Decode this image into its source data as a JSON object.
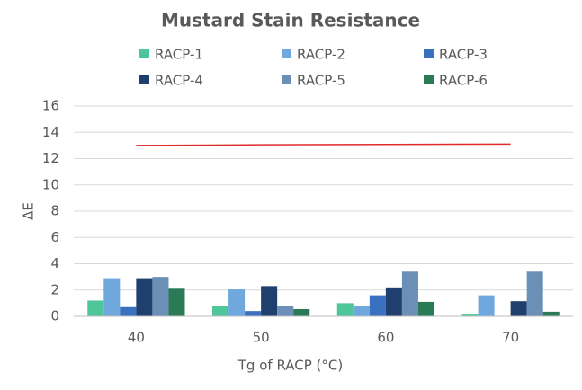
{
  "chart_data": {
    "type": "bar",
    "title": "Mustard Stain Resistance",
    "x_label": "Tg of RACP (°C)",
    "y_label": "ΔE",
    "categories": [
      "40",
      "50",
      "60",
      "70"
    ],
    "series": [
      {
        "name": "RACP-1",
        "color": "#4fc59a",
        "values": [
          1.2,
          0.8,
          1.0,
          0.2
        ]
      },
      {
        "name": "RACP-2",
        "color": "#6fa8dc",
        "values": [
          2.9,
          2.05,
          0.75,
          1.6
        ]
      },
      {
        "name": "RACP-3",
        "color": "#3a70c0",
        "values": [
          0.7,
          0.4,
          1.6,
          0
        ]
      },
      {
        "name": "RACP-4",
        "color": "#1f3f6e",
        "values": [
          2.9,
          2.3,
          2.2,
          1.15
        ]
      },
      {
        "name": "RACP-5",
        "color": "#6b8fb5",
        "values": [
          3.0,
          0.8,
          3.4,
          3.4
        ]
      },
      {
        "name": "RACP-6",
        "color": "#2a7a55",
        "values": [
          2.1,
          0.55,
          1.1,
          0.35
        ]
      }
    ],
    "reference_line": {
      "type": "line",
      "color": "#e02b2b",
      "values": [
        13.0,
        13.05,
        13.08,
        13.1
      ]
    },
    "ylim": [
      0,
      16
    ],
    "yticks": [
      0,
      2,
      4,
      6,
      8,
      10,
      12,
      14,
      16
    ],
    "grid": true
  }
}
